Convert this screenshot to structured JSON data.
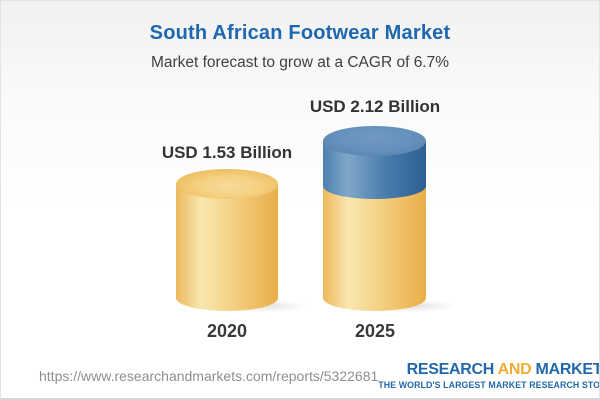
{
  "header": {
    "title": "South African Footwear Market",
    "subtitle": "Market forecast to grow at a CAGR of 6.7%"
  },
  "chart_data": {
    "type": "bar",
    "variant": "3d-cylinder",
    "title": "South African Footwear Market",
    "subtitle": "Market forecast to grow at a CAGR of 6.7%",
    "categories": [
      "2020",
      "2025"
    ],
    "values": [
      1.53,
      2.12
    ],
    "unit": "USD Billion",
    "data_labels": [
      "USD 1.53 Billion",
      "USD 2.12 Billion"
    ],
    "cagr_percent": 6.7,
    "legend": "none",
    "grid": false,
    "axes": "none",
    "colors": {
      "base_segment": "#f0c46c",
      "growth_segment": "#5585b2",
      "title_blue": "#1d68af"
    }
  },
  "bars": [
    {
      "category": "2020",
      "value_label": "USD 1.53 Billion"
    },
    {
      "category": "2025",
      "value_label": "USD 2.12 Billion"
    }
  ],
  "footer": {
    "url": "https://www.researchandmarkets.com/reports/5322681",
    "logo": {
      "word1": "RESEARCH",
      "word2": "AND",
      "word3": "MARKETS",
      "tagline": "THE WORLD'S LARGEST MARKET RESEARCH STORE"
    },
    "colors": {
      "logo_blue": "#2368ad",
      "logo_gold": "#f0ad31",
      "url_gray": "#8f8f8f"
    }
  }
}
